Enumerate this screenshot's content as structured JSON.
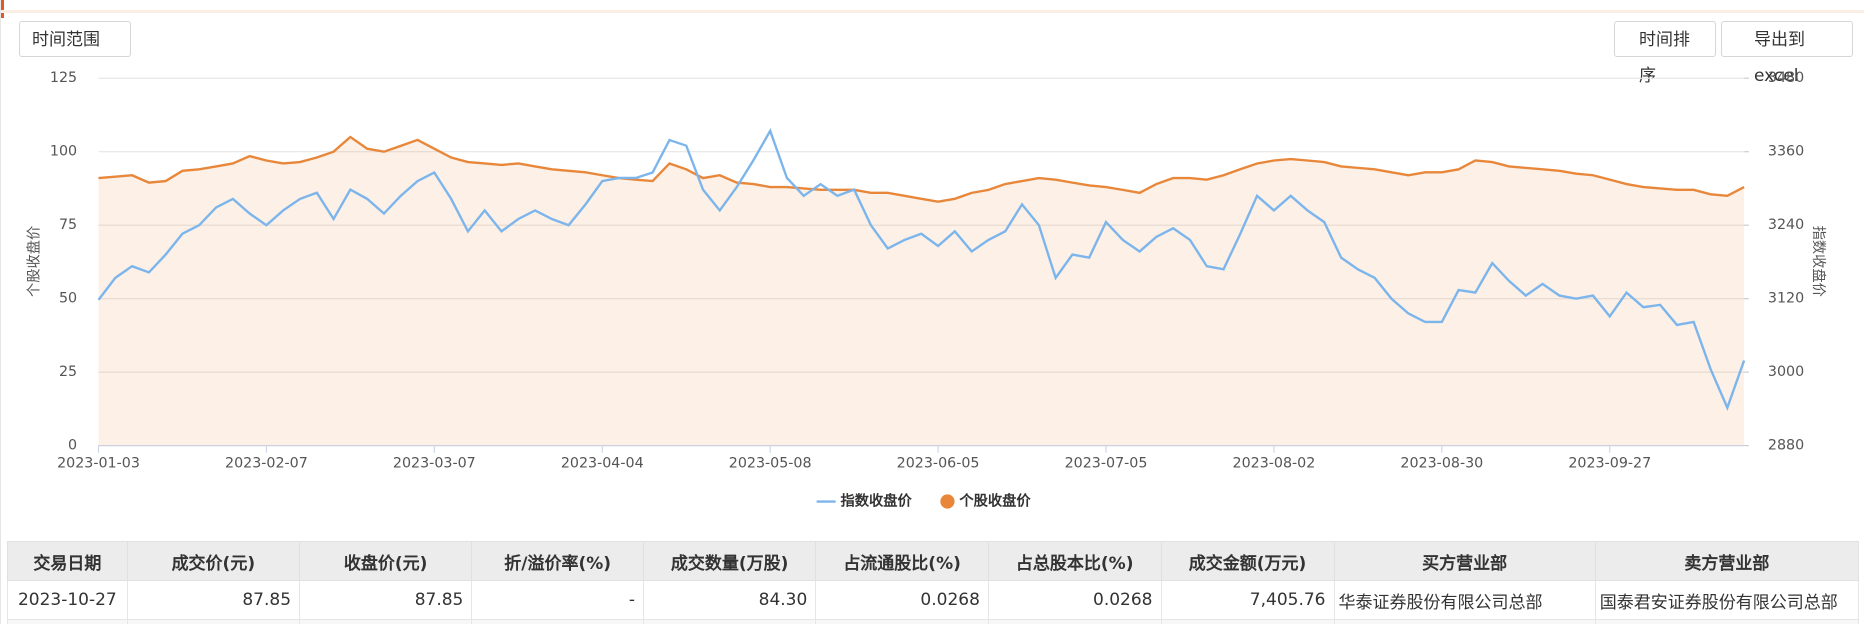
{
  "buttons": {
    "range": "时间范围",
    "sort": "时间排序",
    "export": "导出到excel"
  },
  "chart_data": {
    "type": "line",
    "categories": [
      "2023-01-03",
      null,
      null,
      null,
      null,
      null,
      null,
      null,
      null,
      null,
      "2023-02-07",
      null,
      null,
      null,
      null,
      null,
      null,
      null,
      null,
      null,
      "2023-03-07",
      null,
      null,
      null,
      null,
      null,
      null,
      null,
      null,
      null,
      "2023-04-04",
      null,
      null,
      null,
      null,
      null,
      null,
      null,
      null,
      null,
      "2023-05-08",
      null,
      null,
      null,
      null,
      null,
      null,
      null,
      null,
      null,
      "2023-06-05",
      null,
      null,
      null,
      null,
      null,
      null,
      null,
      null,
      null,
      "2023-07-05",
      null,
      null,
      null,
      null,
      null,
      null,
      null,
      null,
      null,
      "2023-08-02",
      null,
      null,
      null,
      null,
      null,
      null,
      null,
      null,
      null,
      "2023-08-30",
      null,
      null,
      null,
      null,
      null,
      null,
      null,
      null,
      null,
      "2023-09-27",
      null,
      null,
      null,
      null,
      null,
      null,
      null,
      null
    ],
    "series": [
      {
        "name": "指数收盘价",
        "color": "#7cb5ec",
        "axis": "y2",
        "values": [
          3118,
          3154,
          3173,
          3163,
          3192,
          3226,
          3240,
          3269,
          3283,
          3259,
          3240,
          3264,
          3283,
          3293,
          3250,
          3298,
          3283,
          3259,
          3288,
          3312,
          3326,
          3283,
          3230,
          3264,
          3230,
          3250,
          3264,
          3250,
          3240,
          3274,
          3312,
          3317,
          3317,
          3326,
          3379,
          3370,
          3298,
          3264,
          3302,
          3346,
          3394,
          3317,
          3288,
          3307,
          3288,
          3298,
          3240,
          3202,
          3216,
          3226,
          3206,
          3230,
          3197,
          3216,
          3230,
          3274,
          3240,
          3154,
          3192,
          3187,
          3245,
          3216,
          3197,
          3221,
          3235,
          3216,
          3173,
          3168,
          3226,
          3288,
          3264,
          3288,
          3264,
          3245,
          3187,
          3168,
          3154,
          3120,
          3096,
          3082,
          3082,
          3134,
          3130,
          3178,
          3149,
          3125,
          3144,
          3125,
          3120,
          3125,
          3091,
          3130,
          3106,
          3110,
          3077,
          3082,
          3005,
          2942,
          3019
        ]
      },
      {
        "name": "个股收盘价",
        "color": "#e8873a",
        "area": true,
        "values": [
          91,
          91.5,
          92,
          89.5,
          90,
          93.5,
          94,
          95,
          96,
          98.5,
          97,
          96,
          96.5,
          98,
          100,
          105,
          101,
          100,
          102,
          104,
          101,
          98,
          96.5,
          96,
          95.5,
          96,
          95,
          94,
          93.5,
          93,
          92,
          91,
          90.5,
          90,
          96,
          94,
          91,
          92,
          89.5,
          89,
          88,
          88,
          87.5,
          87,
          87,
          87,
          86,
          86,
          85,
          84,
          83,
          84,
          86,
          87,
          89,
          90,
          91,
          90.5,
          89.5,
          88.5,
          88,
          87,
          86,
          89,
          91,
          91,
          90.5,
          92,
          94,
          96,
          97,
          97.5,
          97,
          96.5,
          95,
          94.5,
          94,
          93,
          92,
          93,
          93,
          94,
          97,
          96.5,
          95,
          94.5,
          94,
          93.5,
          92.5,
          92,
          90.5,
          89,
          88,
          87.5,
          87,
          87,
          85.5,
          85,
          88
        ]
      }
    ],
    "ylabel": "个股收盘价",
    "y2label": "指数收盘价",
    "ylim": [
      0,
      125
    ],
    "yticks": [
      0,
      25,
      50,
      75,
      100,
      125
    ],
    "y2lim": [
      2880,
      3480
    ],
    "y2ticks": [
      2880,
      3000,
      3120,
      3240,
      3360,
      3480
    ],
    "grid": true,
    "legend": "bottom"
  },
  "table": {
    "columns": [
      "交易日期",
      "成交价(元)",
      "收盘价(元)",
      "折/溢价率(%)",
      "成交数量(万股)",
      "占流通股比(%)",
      "占总股本比(%)",
      "成交金额(万元)",
      "买方营业部",
      "卖方营业部"
    ],
    "rows": [
      [
        "2023-10-27",
        "87.85",
        "87.85",
        "-",
        "84.30",
        "0.0268",
        "0.0268",
        "7,405.76",
        "华泰证券股份有限公司总部",
        "国泰君安证券股份有限公司总部"
      ]
    ]
  }
}
